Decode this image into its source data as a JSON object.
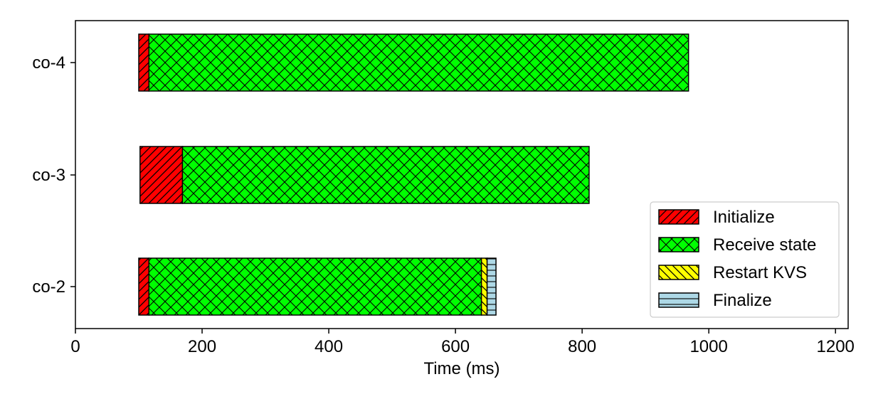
{
  "chart_data": {
    "type": "bar",
    "orientation": "horizontal-stacked",
    "title": "",
    "xlabel": "Time (ms)",
    "ylabel": "",
    "xlim": [
      0,
      1220
    ],
    "xticks": [
      0,
      200,
      400,
      600,
      800,
      1000,
      1200
    ],
    "categories": [
      "co-2",
      "co-3",
      "co-4"
    ],
    "grid": false,
    "legend_position": "bottom-right",
    "series": [
      {
        "name": "Initialize",
        "color": "#ff0000",
        "hatch": "diagonal",
        "segments": [
          {
            "category": "co-2",
            "start": 100,
            "end": 116
          },
          {
            "category": "co-3",
            "start": 102,
            "end": 169
          },
          {
            "category": "co-4",
            "start": 100,
            "end": 116
          }
        ]
      },
      {
        "name": "Receive state",
        "color": "#00ff00",
        "hatch": "crosshatch",
        "segments": [
          {
            "category": "co-2",
            "start": 116,
            "end": 641
          },
          {
            "category": "co-3",
            "start": 169,
            "end": 811
          },
          {
            "category": "co-4",
            "start": 116,
            "end": 968
          }
        ]
      },
      {
        "name": "Restart KVS",
        "color": "#ffff00",
        "hatch": "backdiagonal",
        "segments": [
          {
            "category": "co-2",
            "start": 641,
            "end": 650
          }
        ]
      },
      {
        "name": "Finalize",
        "color": "#add8e6",
        "hatch": "horizontal",
        "segments": [
          {
            "category": "co-2",
            "start": 650,
            "end": 664
          }
        ]
      }
    ]
  }
}
